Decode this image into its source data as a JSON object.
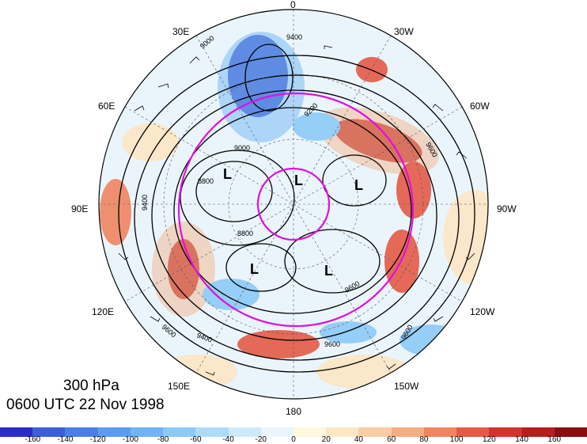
{
  "figure": {
    "level_label": "300 hPa",
    "time_label": "0600 UTC 22 Nov 1998"
  },
  "longitude_labels": [
    {
      "text": "0",
      "angle": 0
    },
    {
      "text": "30W",
      "angle": 30
    },
    {
      "text": "60W",
      "angle": 60
    },
    {
      "text": "90W",
      "angle": 90
    },
    {
      "text": "120W",
      "angle": 120
    },
    {
      "text": "150W",
      "angle": 150
    },
    {
      "text": "180",
      "angle": 180
    },
    {
      "text": "150E",
      "angle": 210
    },
    {
      "text": "120E",
      "angle": 240
    },
    {
      "text": "90E",
      "angle": 270
    },
    {
      "text": "60E",
      "angle": 300
    },
    {
      "text": "30E",
      "angle": 330
    }
  ],
  "contour_labels": [
    "9400",
    "9400",
    "9200",
    "9000",
    "9000",
    "8800",
    "8800",
    "9600",
    "9600",
    "9600",
    "9600",
    "9400",
    "9600"
  ],
  "low_markers": [
    "L",
    "L",
    "L",
    "L",
    "L"
  ],
  "colorbar": {
    "ticks": [
      "-160",
      "-140",
      "-120",
      "-100",
      "-80",
      "-60",
      "-40",
      "-20",
      "0",
      "20",
      "40",
      "60",
      "80",
      "100",
      "120",
      "140",
      "160"
    ],
    "colors": [
      "#2a2cc8",
      "#3a5fd9",
      "#4a80e6",
      "#5a9cf0",
      "#6fb4f4",
      "#8ccaf6",
      "#acdcf8",
      "#cdeafa",
      "#ebf6fc",
      "#fff8e0",
      "#fde6c4",
      "#f9cda4",
      "#f5ad82",
      "#ef8660",
      "#e45a46",
      "#d2332e",
      "#b81d1d",
      "#8b0d12"
    ]
  }
}
